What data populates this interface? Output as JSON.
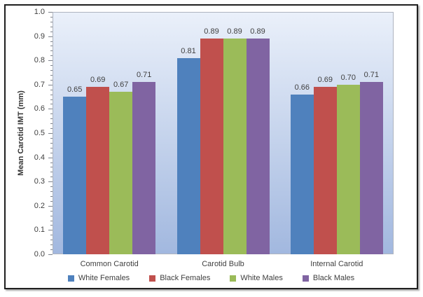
{
  "chart_data": {
    "type": "bar",
    "title": "",
    "ylabel": "Mean Carotid IMT (mm)",
    "xlabel": "",
    "categories": [
      "Common Carotid",
      "Carotid Bulb",
      "Internal Carotid"
    ],
    "series": [
      {
        "name": "White Females",
        "color": "#4F81BD",
        "values": [
          0.65,
          0.81,
          0.66
        ]
      },
      {
        "name": "Black Females",
        "color": "#C0504D",
        "values": [
          0.69,
          0.89,
          0.69
        ]
      },
      {
        "name": "White Males",
        "color": "#9BBB59",
        "values": [
          0.67,
          0.89,
          0.7
        ]
      },
      {
        "name": "Black Males",
        "color": "#8064A2",
        "values": [
          0.71,
          0.89,
          0.71
        ]
      }
    ],
    "value_labels": [
      [
        "0.65",
        "0.81",
        "0.66"
      ],
      [
        "0.69",
        "0.89",
        "0.69"
      ],
      [
        "0.67",
        "0.89",
        "0.70"
      ],
      [
        "0.71",
        "0.89",
        "0.71"
      ]
    ],
    "ylim": [
      0.0,
      1.0
    ],
    "ytick_step": 0.1,
    "minor_tick_step": 0.02,
    "ytick_labels": [
      "0.0",
      "0.1",
      "0.2",
      "0.3",
      "0.4",
      "0.5",
      "0.6",
      "0.7",
      "0.8",
      "0.9",
      "1.0"
    ],
    "grid": false,
    "legend_position": "bottom",
    "plot_bg_top": "#EAF0FA",
    "plot_bg_bottom": "#A2B8DF",
    "frame_border_color": "#1F1F1F",
    "axis_color": "#7D828C"
  }
}
